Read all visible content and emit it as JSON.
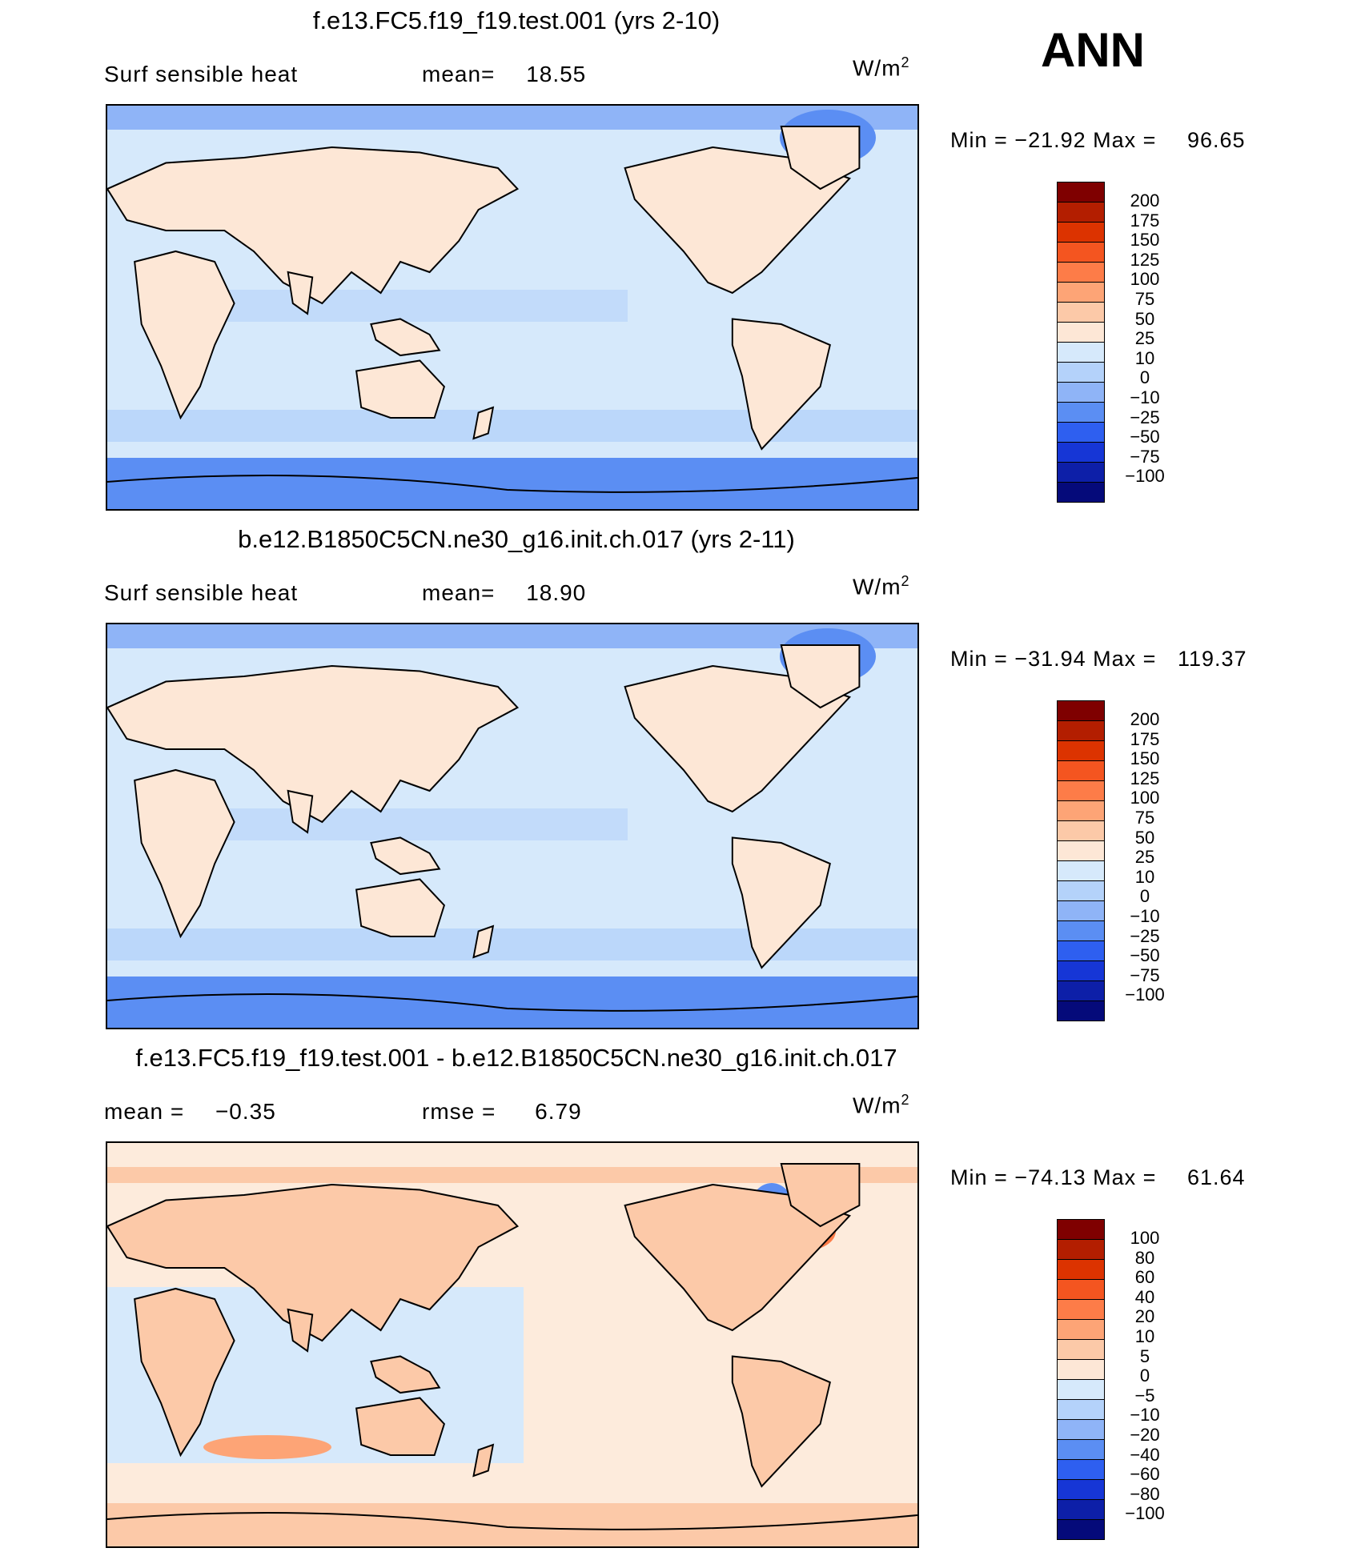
{
  "season": "ANN",
  "units": "W/m",
  "units_sup": "2",
  "panels": [
    {
      "title": "f.e13.FC5.f19_f19.test.001 (yrs 2-10)",
      "left_label": "Surf sensible heat",
      "mid_label": "mean=",
      "mid_value": "18.55",
      "min_label": "Min =",
      "min_value": "−21.92",
      "max_label": "Max =",
      "max_value": "96.65",
      "colorbar": {
        "colors": [
          "#7f0000",
          "#b31e00",
          "#dc3300",
          "#f45520",
          "#fd7c48",
          "#fda476",
          "#fcc9a8",
          "#fde7d6",
          "#d6e9fb",
          "#b4d2fa",
          "#8fb4f7",
          "#5b8ef3",
          "#2e5ff0",
          "#1636d6",
          "#0d1fa8",
          "#050a7a"
        ],
        "labels": [
          "200",
          "175",
          "150",
          "125",
          "100",
          "75",
          "50",
          "25",
          "10",
          "0",
          "−10",
          "−25",
          "−50",
          "−75",
          "−100"
        ]
      }
    },
    {
      "title": "b.e12.B1850C5CN.ne30_g16.init.ch.017 (yrs 2-11)",
      "left_label": "Surf sensible heat",
      "mid_label": "mean=",
      "mid_value": "18.90",
      "min_label": "Min =",
      "min_value": "−31.94",
      "max_label": "Max =",
      "max_value": "119.37",
      "colorbar": {
        "colors": [
          "#7f0000",
          "#b31e00",
          "#dc3300",
          "#f45520",
          "#fd7c48",
          "#fda476",
          "#fcc9a8",
          "#fde7d6",
          "#d6e9fb",
          "#b4d2fa",
          "#8fb4f7",
          "#5b8ef3",
          "#2e5ff0",
          "#1636d6",
          "#0d1fa8",
          "#050a7a"
        ],
        "labels": [
          "200",
          "175",
          "150",
          "125",
          "100",
          "75",
          "50",
          "25",
          "10",
          "0",
          "−10",
          "−25",
          "−50",
          "−75",
          "−100"
        ]
      }
    },
    {
      "title": "f.e13.FC5.f19_f19.test.001 - b.e12.B1850C5CN.ne30_g16.init.ch.017",
      "left_label": "mean =",
      "left_value": "−0.35",
      "mid_label": "rmse =",
      "mid_value": "6.79",
      "min_label": "Min =",
      "min_value": "−74.13",
      "max_label": "Max =",
      "max_value": "61.64",
      "colorbar": {
        "colors": [
          "#7f0000",
          "#b31e00",
          "#dc3300",
          "#f45520",
          "#fd7c48",
          "#fda476",
          "#fcc9a8",
          "#fde7d6",
          "#d6e9fb",
          "#b4d2fa",
          "#8fb4f7",
          "#5b8ef3",
          "#2e5ff0",
          "#1636d6",
          "#0d1fa8",
          "#050a7a"
        ],
        "labels": [
          "100",
          "80",
          "60",
          "40",
          "20",
          "10",
          "5",
          "0",
          "−5",
          "−10",
          "−20",
          "−40",
          "−60",
          "−80",
          "−100"
        ]
      }
    }
  ]
}
